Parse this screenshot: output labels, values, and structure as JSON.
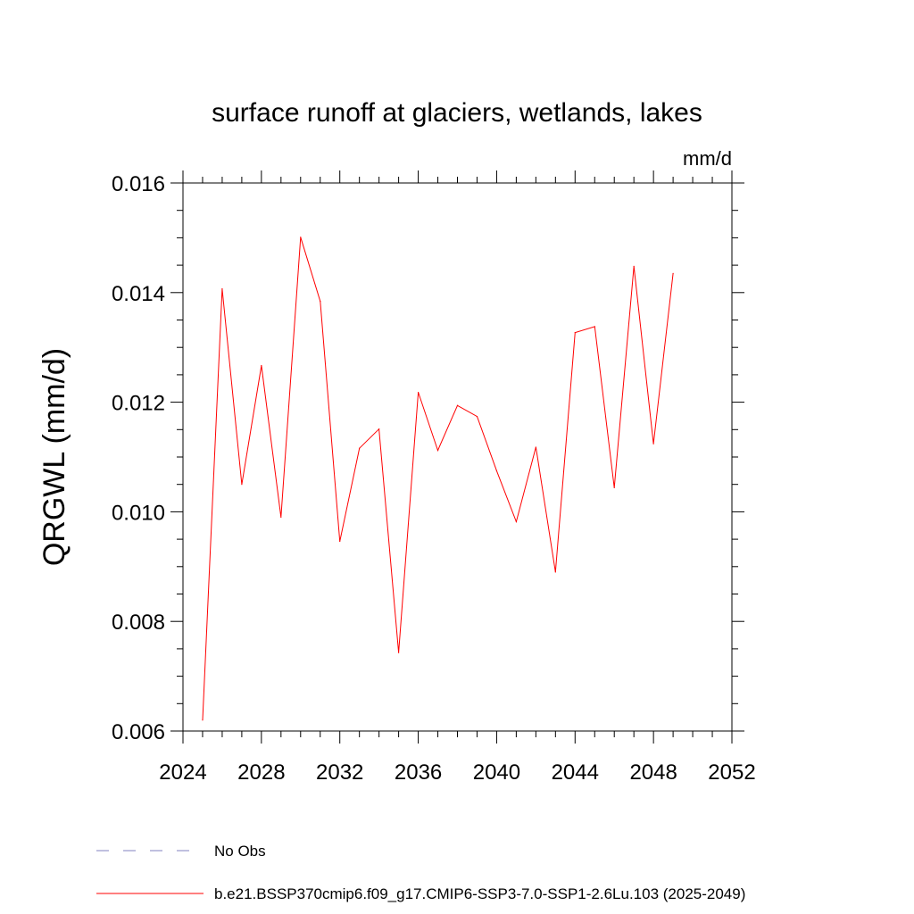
{
  "chart_data": {
    "type": "line",
    "title": "surface runoff at glaciers, wetlands, lakes",
    "units": "mm/d",
    "ylabel": "QRGWL  (mm/d)",
    "xlabel": "",
    "xlim": [
      2024,
      2052
    ],
    "ylim": [
      0.006,
      0.016
    ],
    "x_ticks": [
      2024,
      2028,
      2032,
      2036,
      2040,
      2044,
      2048,
      2052
    ],
    "y_ticks": [
      0.006,
      0.008,
      0.01,
      0.012,
      0.014,
      0.016
    ],
    "x_tick_labels": [
      "2024",
      "2028",
      "2032",
      "2036",
      "2040",
      "2044",
      "2048",
      "2052"
    ],
    "y_tick_labels": [
      "0.006",
      "0.008",
      "0.010",
      "0.012",
      "0.014",
      "0.016"
    ],
    "grid": false,
    "legend_position": "bottom",
    "series": [
      {
        "name": "b.e21.BSSP370cmip6.f09_g17.CMIP6-SSP3-7.0-SSP1-2.6Lu.103 (2025-2049)",
        "color": "#ff0000",
        "style": "solid",
        "x": [
          2025,
          2026,
          2027,
          2028,
          2029,
          2030,
          2031,
          2032,
          2033,
          2034,
          2035,
          2036,
          2037,
          2038,
          2039,
          2040,
          2041,
          2042,
          2043,
          2044,
          2045,
          2046,
          2047,
          2048,
          2049
        ],
        "y": [
          0.0062,
          0.01407,
          0.0105,
          0.01267,
          0.0099,
          0.01501,
          0.01384,
          0.00946,
          0.01116,
          0.01151,
          0.00743,
          0.01218,
          0.01112,
          0.01194,
          0.01174,
          0.01075,
          0.00982,
          0.01118,
          0.0089,
          0.01327,
          0.01338,
          0.01044,
          0.01448,
          0.01124,
          0.01435
        ]
      },
      {
        "name": "No Obs",
        "color": "#8080c0",
        "style": "dashed",
        "x": [],
        "y": []
      }
    ]
  }
}
